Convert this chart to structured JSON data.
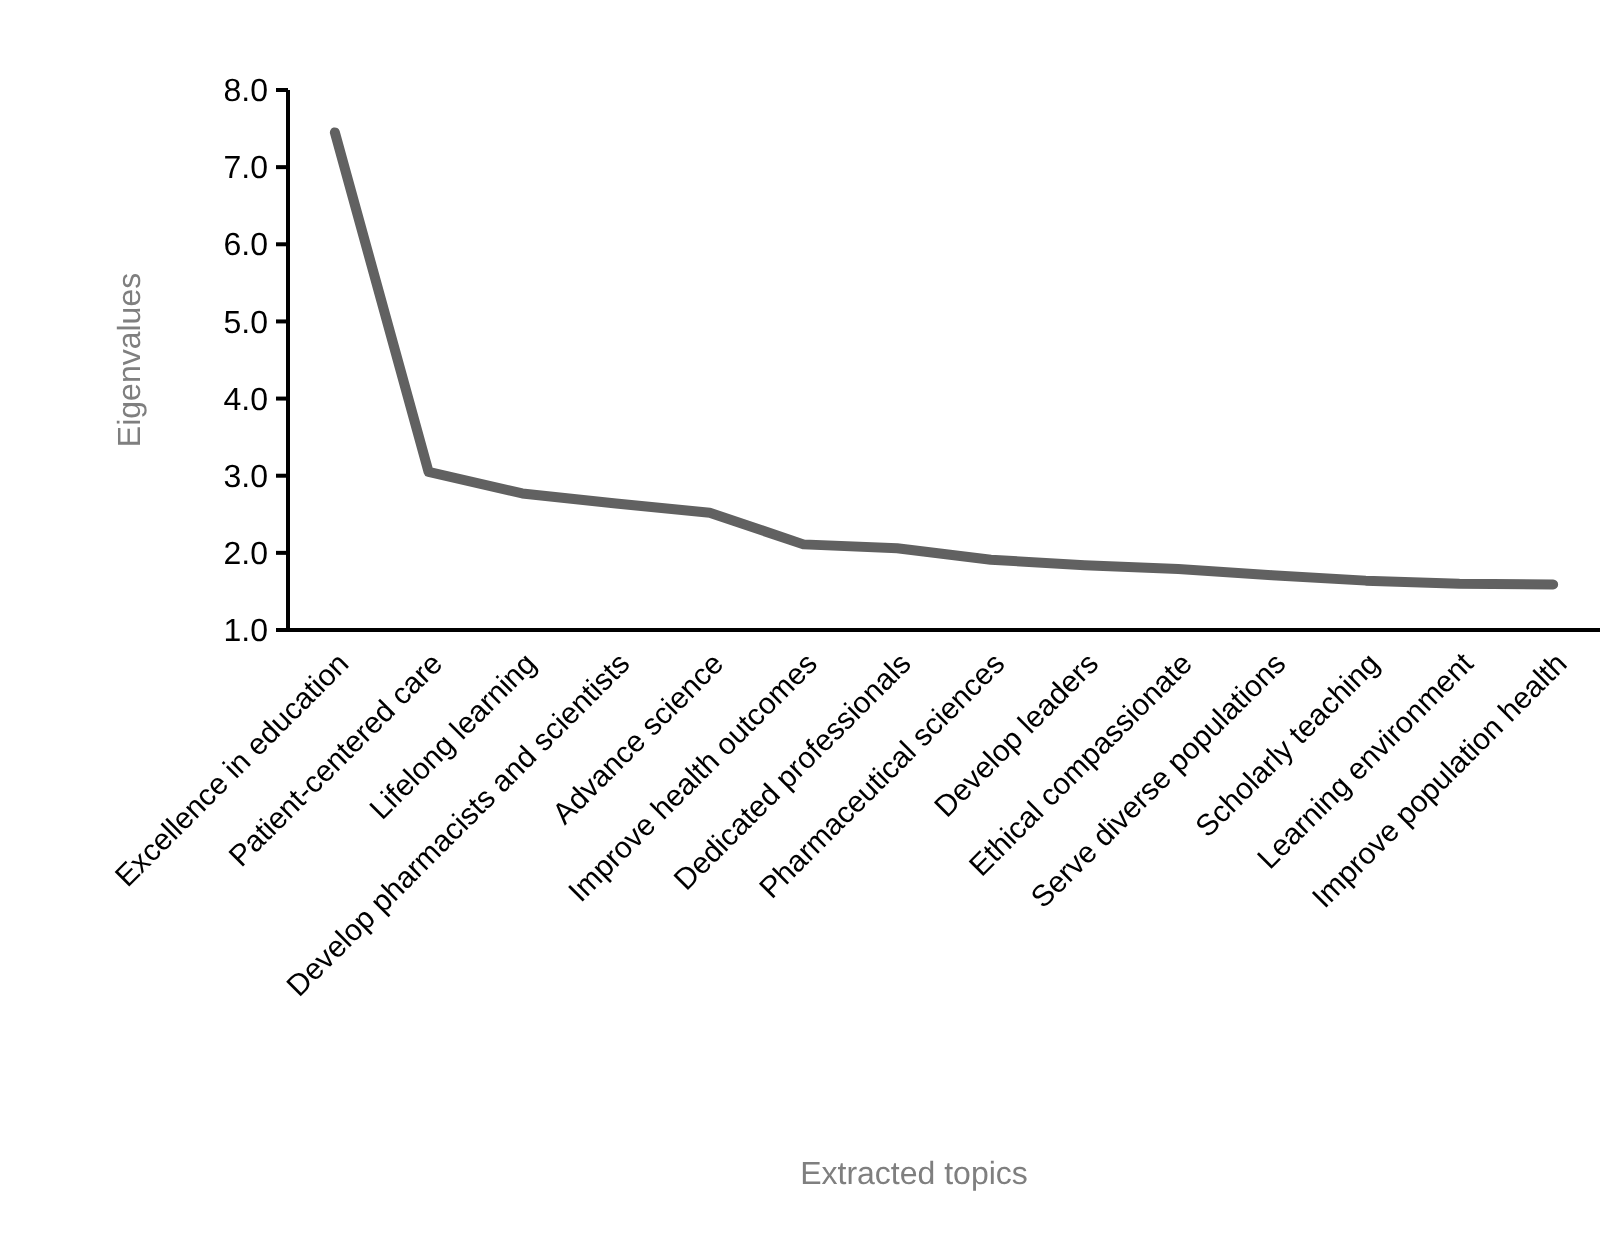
{
  "chart_data": {
    "type": "line",
    "xlabel": "Extracted topics",
    "ylabel": "Eigenvalues",
    "categories": [
      "Excellence in education",
      "Patient-centered care",
      "Lifelong learning",
      "Develop pharmacists and scientists",
      "Advance science",
      "Improve health outcomes",
      "Dedicated professionals",
      "Pharmaceutical sciences",
      "Develop leaders",
      "Ethical compassionate",
      "Serve diverse populations",
      "Scholarly teaching",
      "Learning environment",
      "Improve population health"
    ],
    "series": [
      {
        "color": "#616161",
        "values": [
          7.45,
          3.05,
          2.77,
          2.64,
          2.52,
          2.11,
          2.06,
          1.91,
          1.84,
          1.79,
          1.71,
          1.64,
          1.6,
          1.59
        ]
      }
    ],
    "ylim": [
      1,
      8
    ],
    "yticks": [
      {
        "value": 1,
        "label": "1.0"
      },
      {
        "value": 2,
        "label": "2.0"
      },
      {
        "value": 3,
        "label": "3.0"
      },
      {
        "value": 4,
        "label": "4.0"
      },
      {
        "value": 5,
        "label": "5.0"
      },
      {
        "value": 6,
        "label": "6.0"
      },
      {
        "value": 7,
        "label": "7.0"
      },
      {
        "value": 8,
        "label": "8.0"
      }
    ],
    "grid": false,
    "marker": "none",
    "line_style": "solid"
  }
}
